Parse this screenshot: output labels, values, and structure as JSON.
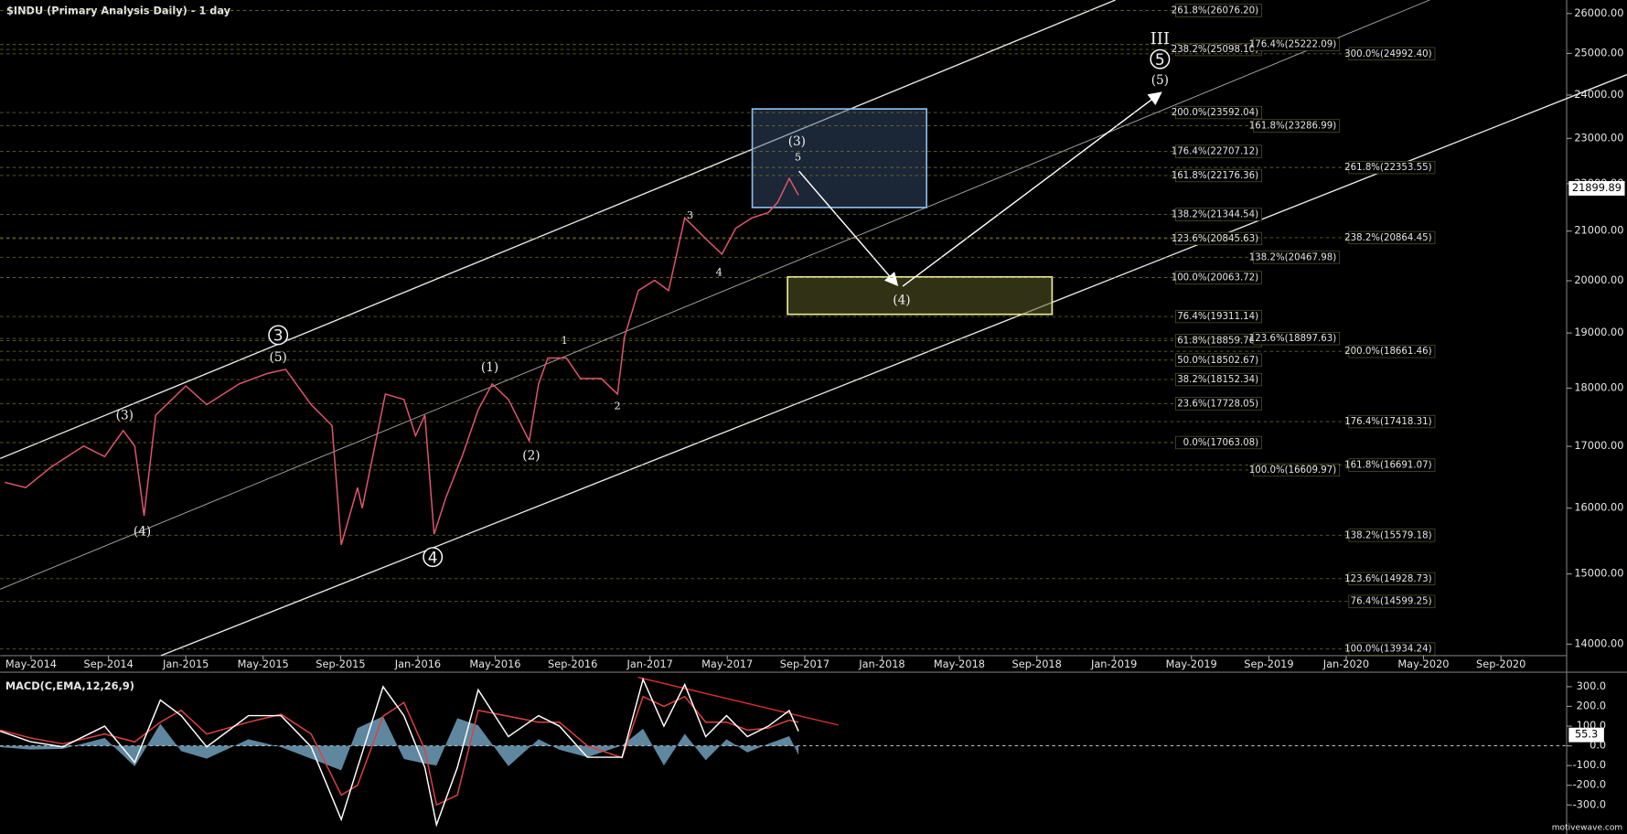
{
  "chart_data": [
    {
      "type": "line",
      "title": "$INDU (Primary Analysis Daily) - 1 day",
      "log": true,
      "xlim": [
        2014.2,
        2020.95
      ],
      "ylim": [
        13844,
        26347
      ],
      "xticks": [
        {
          "value": 2014.333,
          "label": "May-2014"
        },
        {
          "value": 2014.667,
          "label": "Sep-2014"
        },
        {
          "value": 2015.0,
          "label": "Jan-2015"
        },
        {
          "value": 2015.333,
          "label": "May-2015"
        },
        {
          "value": 2015.667,
          "label": "Sep-2015"
        },
        {
          "value": 2016.0,
          "label": "Jan-2016"
        },
        {
          "value": 2016.333,
          "label": "May-2016"
        },
        {
          "value": 2016.667,
          "label": "Sep-2016"
        },
        {
          "value": 2017.0,
          "label": "Jan-2017"
        },
        {
          "value": 2017.333,
          "label": "May-2017"
        },
        {
          "value": 2017.667,
          "label": "Sep-2017"
        },
        {
          "value": 2018.0,
          "label": "Jan-2018"
        },
        {
          "value": 2018.333,
          "label": "May-2018"
        },
        {
          "value": 2018.667,
          "label": "Sep-2018"
        },
        {
          "value": 2019.0,
          "label": "Jan-2019"
        },
        {
          "value": 2019.333,
          "label": "May-2019"
        },
        {
          "value": 2019.667,
          "label": "Sep-2019"
        },
        {
          "value": 2020.0,
          "label": "Jan-2020"
        },
        {
          "value": 2020.333,
          "label": "May-2020"
        },
        {
          "value": 2020.667,
          "label": "Sep-2020"
        }
      ],
      "yticks": [
        {
          "value": 14000,
          "label": "14000.00"
        },
        {
          "value": 15000,
          "label": "15000.00"
        },
        {
          "value": 16000,
          "label": "16000.00"
        },
        {
          "value": 17000,
          "label": "17000.00"
        },
        {
          "value": 18000,
          "label": "18000.00"
        },
        {
          "value": 19000,
          "label": "19000.00"
        },
        {
          "value": 20000,
          "label": "20000.00"
        },
        {
          "value": 21000,
          "label": "21000.00"
        },
        {
          "value": 22000,
          "label": "22000.00"
        },
        {
          "value": 23000,
          "label": "23000.00"
        },
        {
          "value": 24000,
          "label": "24000.00"
        },
        {
          "value": 25000,
          "label": "25000.00"
        },
        {
          "value": 26000,
          "label": "26000.00"
        }
      ],
      "x": [
        2014.22,
        2014.31,
        2014.42,
        2014.56,
        2014.65,
        2014.73,
        2014.78,
        2014.82,
        2014.87,
        2015.0,
        2015.09,
        2015.23,
        2015.35,
        2015.43,
        2015.54,
        2015.63,
        2015.67,
        2015.74,
        2015.76,
        2015.86,
        2015.94,
        2015.99,
        2016.03,
        2016.07,
        2016.12,
        2016.19,
        2016.26,
        2016.32,
        2016.39,
        2016.48,
        2016.52,
        2016.56,
        2016.64,
        2016.7,
        2016.79,
        2016.86,
        2016.89,
        2016.95,
        2017.02,
        2017.08,
        2017.15,
        2017.24,
        2017.31,
        2017.37,
        2017.44,
        2017.51,
        2017.55,
        2017.6,
        2017.64
      ],
      "series": [
        {
          "color": "#e2566e",
          "values": [
            16410,
            16325,
            16660,
            17005,
            16830,
            17265,
            17005,
            15880,
            17530,
            18040,
            17710,
            18075,
            18260,
            18335,
            17710,
            17350,
            15435,
            16325,
            16000,
            17895,
            17800,
            17180,
            17530,
            15595,
            16160,
            16830,
            17620,
            18075,
            17800,
            17090,
            18075,
            18540,
            18540,
            18170,
            18170,
            17895,
            18925,
            19810,
            20010,
            19810,
            21275,
            20845,
            20530,
            21060,
            21275,
            21385,
            21600,
            22115,
            21755
          ]
        }
      ],
      "last_price": 21899.89,
      "fib_sets": [
        [
          {
            "label": "261.8%(26076.20)",
            "value": 26076.2
          },
          {
            "label": "238.2%(25098.10)",
            "value": 25098.1
          },
          {
            "label": "200.0%(23592.04)",
            "value": 23592.04
          },
          {
            "label": "176.4%(22707.12)",
            "value": 22707.12
          },
          {
            "label": "161.8%(22176.36)",
            "value": 22176.36
          },
          {
            "label": "138.2%(21344.54)",
            "value": 21344.54
          },
          {
            "label": "123.6%(20845.63)",
            "value": 20845.63
          },
          {
            "label": "100.0%(20063.72)",
            "value": 20063.72
          },
          {
            "label": "76.4%(19311.14)",
            "value": 19311.14
          },
          {
            "label": "61.8%(18859.76)",
            "value": 18859.76
          },
          {
            "label": "50.0%(18502.67)",
            "value": 18502.67
          },
          {
            "label": "38.2%(18152.34)",
            "value": 18152.34
          },
          {
            "label": "23.6%(17728.05)",
            "value": 17728.05
          },
          {
            "label": "0.0%(17063.08)",
            "value": 17063.08
          }
        ],
        [
          {
            "label": "176.4%(25222.09)",
            "value": 25222.09
          },
          {
            "label": "161.8%(23286.99)",
            "value": 23286.99
          },
          {
            "label": "138.2%(20467.98)",
            "value": 20467.98
          },
          {
            "label": "123.6%(18897.63)",
            "value": 18897.63
          },
          {
            "label": "100.0%(16609.97)",
            "value": 16609.97
          }
        ],
        [
          {
            "label": "300.0%(24992.40)",
            "value": 24992.4
          },
          {
            "label": "261.8%(22353.55)",
            "value": 22353.55
          },
          {
            "label": "238.2%(20864.45)",
            "value": 20864.45
          },
          {
            "label": "200.0%(18661.46)",
            "value": 18661.46
          },
          {
            "label": "176.4%(17418.31)",
            "value": 17418.31
          },
          {
            "label": "161.8%(16691.07)",
            "value": 16691.07
          },
          {
            "label": "138.2%(15579.18)",
            "value": 15579.18
          },
          {
            "label": "123.6%(14928.73)",
            "value": 14928.73
          },
          {
            "label": "76.4%(14599.25)",
            "value": 14599.25
          },
          {
            "label": "100.0%(13934.24)",
            "value": 13934.24
          }
        ]
      ],
      "wave_labels": [
        "(3)",
        "(4)",
        "3",
        "(5)",
        "4",
        "(1)",
        "(2)",
        "1",
        "2",
        "3",
        "4",
        "(3)",
        "5",
        "(4)",
        "(5)",
        "5",
        "III"
      ],
      "watermark": "motivewave.com"
    },
    {
      "type": "line",
      "title": "MACD(C,EMA,12,26,9)",
      "xlim": [
        2014.2,
        2020.95
      ],
      "ylim": [
        -426,
        363
      ],
      "zero_line": true,
      "yticks": [
        {
          "value": 300,
          "label": "300.0"
        },
        {
          "value": 200,
          "label": "200.0"
        },
        {
          "value": 100,
          "label": "100.0"
        },
        {
          "value": 0,
          "label": "0.0"
        },
        {
          "value": -100,
          "label": "-100.0"
        },
        {
          "value": -200,
          "label": "-200.0"
        },
        {
          "value": -300,
          "label": "-300.0"
        }
      ],
      "x": [
        2014.2,
        2014.33,
        2014.47,
        2014.65,
        2014.78,
        2014.89,
        2014.98,
        2015.09,
        2015.27,
        2015.41,
        2015.54,
        2015.67,
        2015.74,
        2015.85,
        2015.94,
        2016.03,
        2016.08,
        2016.17,
        2016.26,
        2016.39,
        2016.52,
        2016.61,
        2016.73,
        2016.88,
        2016.97,
        2017.06,
        2017.15,
        2017.24,
        2017.33,
        2017.42,
        2017.51,
        2017.6,
        2017.64
      ],
      "series": [
        {
          "type": "area",
          "color": "#7fb4d4",
          "values": [
            -6,
            -19,
            -15,
            40,
            -104,
            112,
            -27,
            -65,
            33,
            -7,
            -65,
            -124,
            90,
            150,
            -67,
            -90,
            -100,
            140,
            104,
            -103,
            33,
            -20,
            -58,
            2,
            87,
            -100,
            61,
            -73,
            33,
            -33,
            10,
            49,
            -46
          ]
        },
        {
          "type": "line",
          "color": "#e04040",
          "values": [
            80,
            40,
            10,
            60,
            20,
            120,
            180,
            60,
            120,
            160,
            60,
            -250,
            -200,
            150,
            220,
            -20,
            -300,
            -250,
            180,
            150,
            120,
            120,
            0,
            -60,
            250,
            200,
            250,
            120,
            120,
            80,
            90,
            130,
            120
          ]
        },
        {
          "type": "line",
          "color": "#ffffff",
          "values": [
            74,
            21,
            -5,
            100,
            -84,
            232,
            153,
            -5,
            153,
            153,
            -5,
            -374,
            -110,
            300,
            153,
            -110,
            -400,
            -110,
            284,
            47,
            153,
            100,
            -58,
            -58,
            337,
            100,
            311,
            47,
            153,
            47,
            100,
            179,
            74
          ]
        }
      ],
      "last_value": 55.3
    }
  ]
}
